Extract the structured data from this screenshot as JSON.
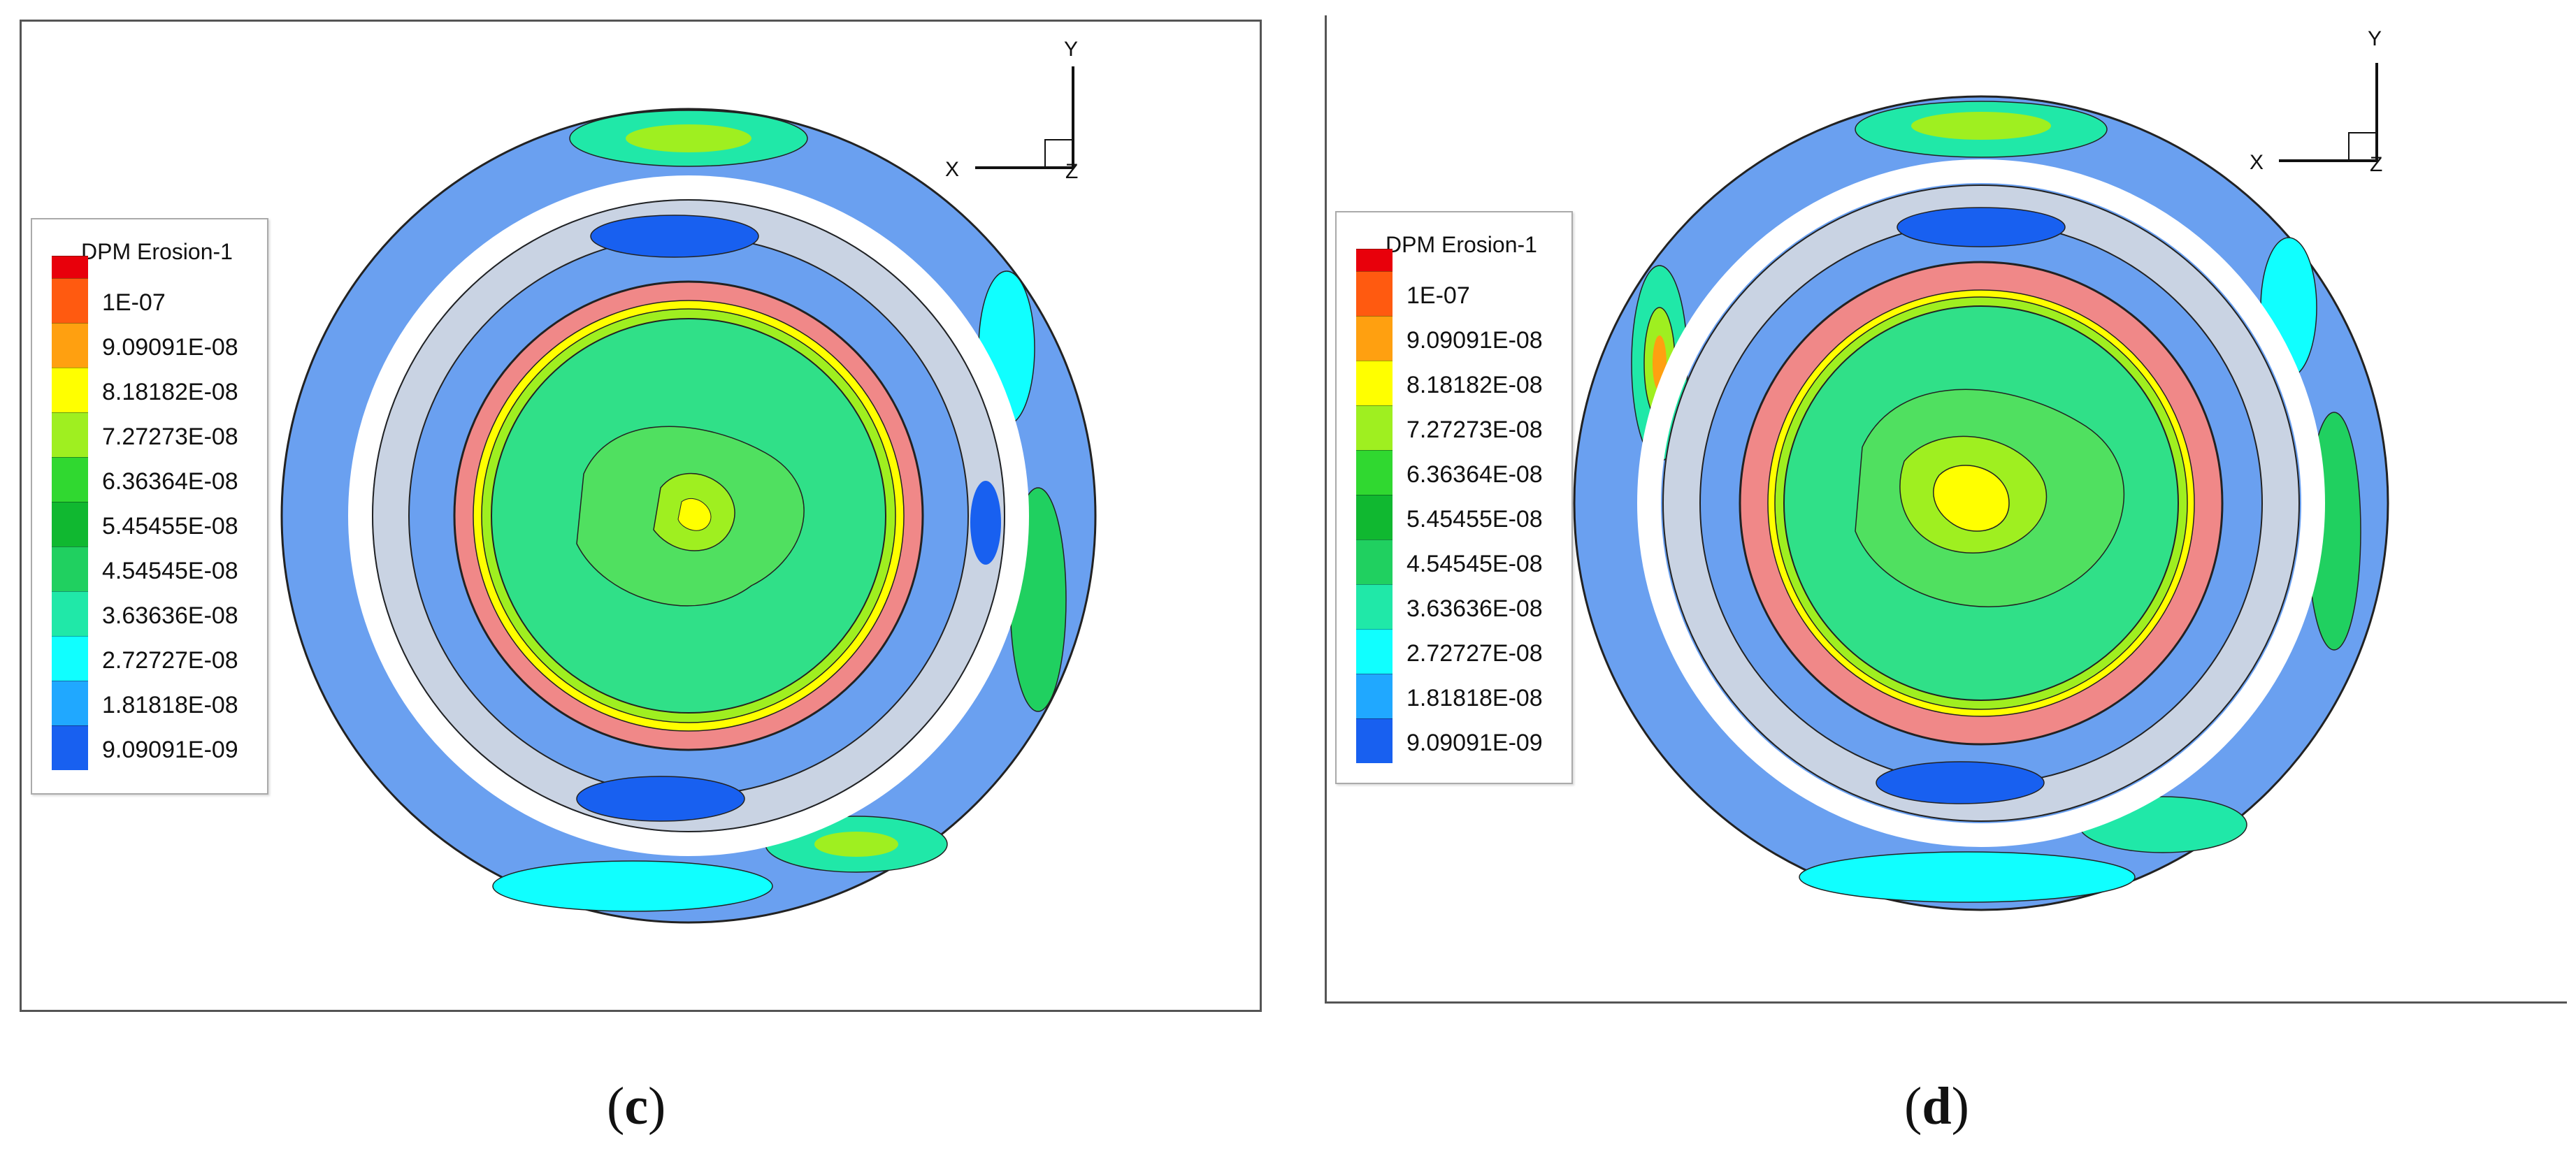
{
  "panels": [
    {
      "id": "c",
      "legend_title": "DPM Erosion-1",
      "levels": [
        "1E-07",
        "9.09091E-08",
        "8.18182E-08",
        "7.27273E-08",
        "6.36364E-08",
        "5.45455E-08",
        "4.54545E-08",
        "3.63636E-08",
        "2.72727E-08",
        "1.81818E-08",
        "9.09091E-09"
      ],
      "axes": {
        "x": "X",
        "y": "Y",
        "z": "Z"
      },
      "caption_open": "(",
      "caption_letter": "c",
      "caption_close": ")"
    },
    {
      "id": "d",
      "legend_title": "DPM Erosion-1",
      "levels": [
        "1E-07",
        "9.09091E-08",
        "8.18182E-08",
        "7.27273E-08",
        "6.36364E-08",
        "5.45455E-08",
        "4.54545E-08",
        "3.63636E-08",
        "2.72727E-08",
        "1.81818E-08",
        "9.09091E-09"
      ],
      "axes": {
        "x": "X",
        "y": "Y",
        "z": "Z"
      },
      "caption_open": "(",
      "caption_letter": "d",
      "caption_close": ")"
    }
  ],
  "colors": {
    "scale": [
      "#e8000b",
      "#ff5a10",
      "#ffa010",
      "#ffff00",
      "#9fef20",
      "#30d830",
      "#10b830",
      "#20d060",
      "#20e8a8",
      "#10ffff",
      "#20a8ff",
      "#1860f0"
    ],
    "outer_band": "#6aa0f0",
    "core_ring": "#f08888",
    "core_fill": "#30e088",
    "white_gap": "#ffffff",
    "light_gray": "#d8dde6"
  }
}
